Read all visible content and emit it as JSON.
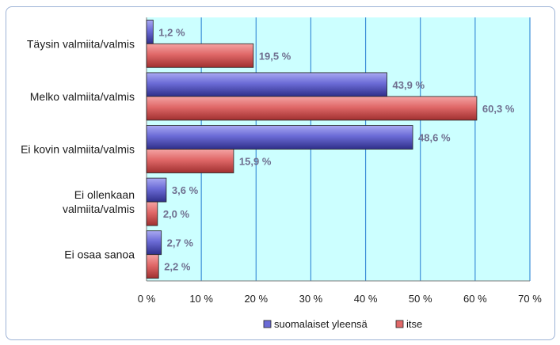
{
  "chart_data": {
    "type": "bar",
    "orientation": "horizontal",
    "categories": [
      [
        "Täysin valmiita/valmis"
      ],
      [
        "Melko valmiita/valmis"
      ],
      [
        "Ei kovin valmiita/valmis"
      ],
      [
        "Ei ollenkaan",
        "valmiita/valmis"
      ],
      [
        "Ei osaa sanoa"
      ]
    ],
    "series": [
      {
        "name": "suomalaiset yleensä",
        "color": "#6b6bd6",
        "values": [
          1.2,
          43.9,
          48.6,
          3.6,
          2.7
        ],
        "labels": [
          "1,2 %",
          "43,9 %",
          "48,6 %",
          "3,6 %",
          "2,7 %"
        ]
      },
      {
        "name": "itse",
        "color": "#e06868",
        "values": [
          19.5,
          60.3,
          15.9,
          2.0,
          2.2
        ],
        "labels": [
          "19,5 %",
          "60,3 %",
          "15,9 %",
          "2,0 %",
          "2,2 %"
        ]
      }
    ],
    "xlim": [
      0,
      70
    ],
    "xticks": [
      0,
      10,
      20,
      30,
      40,
      50,
      60,
      70
    ],
    "xtick_labels": [
      "0 %",
      "10 %",
      "20 %",
      "30 %",
      "40 %",
      "50 %",
      "60 %",
      "70 %"
    ],
    "grid": true,
    "plot_background": "#ccffff",
    "legend_position": "bottom"
  }
}
